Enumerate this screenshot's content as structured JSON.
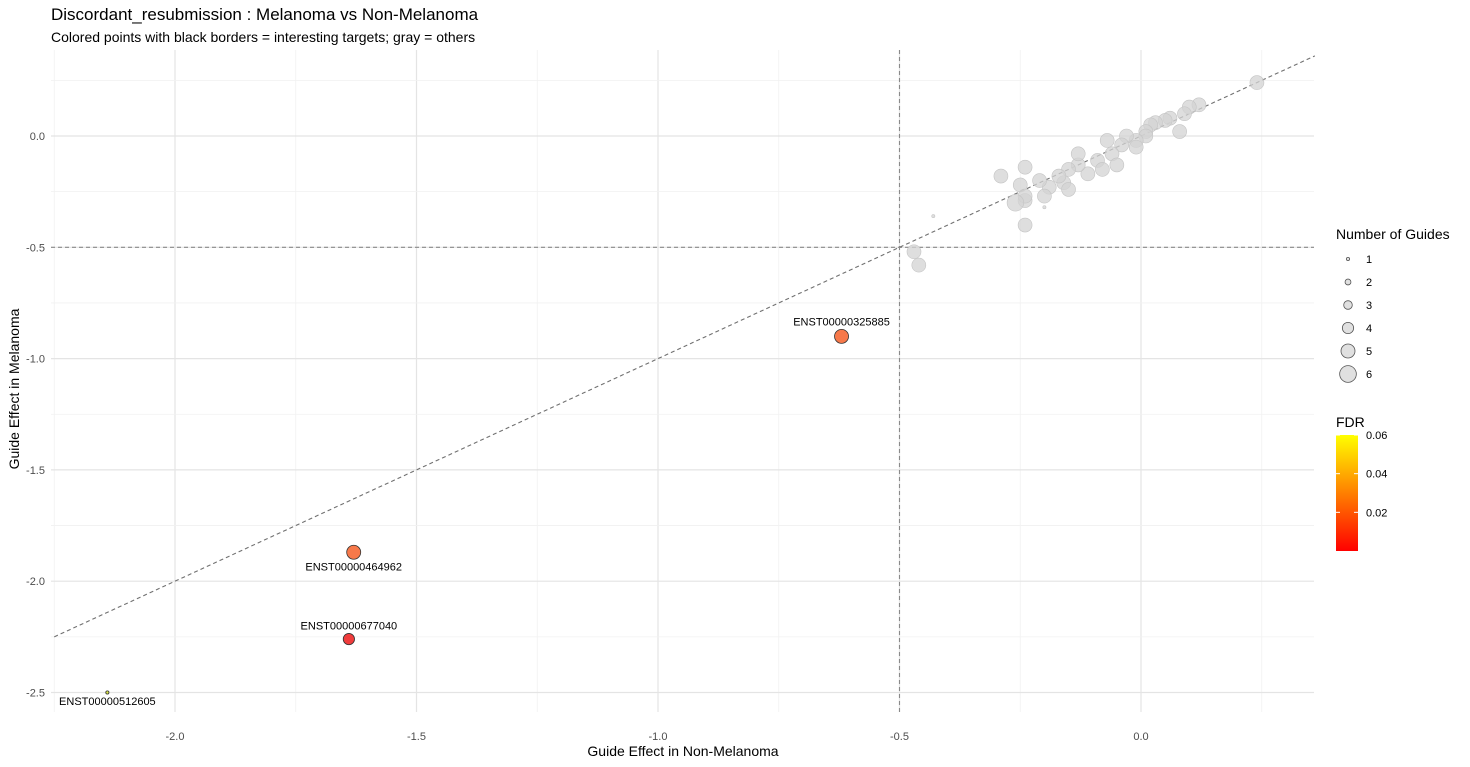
{
  "chart_data": {
    "type": "scatter",
    "title": "Discordant_resubmission : Melanoma vs Non-Melanoma",
    "subtitle": "Colored points with black borders = interesting targets; gray = others",
    "xlabel": "Guide Effect in Non-Melanoma",
    "ylabel": "Guide Effect in Melanoma",
    "xlim": [
      -2.25,
      0.36
    ],
    "ylim": [
      -2.55,
      0.37
    ],
    "x_ticks": [
      -2.0,
      -1.5,
      -1.0,
      -0.5,
      0.0
    ],
    "x_tick_labels": [
      "-2.0",
      "-1.5",
      "-1.0",
      "-0.5",
      "0.0"
    ],
    "y_ticks": [
      0.0,
      -0.5,
      -1.0,
      -1.5,
      -2.0,
      -2.5
    ],
    "y_tick_labels": [
      "0.0",
      "-0.5",
      "-1.0",
      "-1.5",
      "-2.0",
      "-2.5"
    ],
    "grid": true,
    "reference_lines": {
      "vline_x": -0.5,
      "hline_y": -0.5,
      "diagonal": "y = x"
    },
    "size_legend": {
      "title": "Number of Guides",
      "values": [
        1,
        2,
        3,
        4,
        5,
        6
      ],
      "labels": [
        "1",
        "2",
        "3",
        "4",
        "5",
        "6"
      ]
    },
    "color_legend": {
      "title": "FDR",
      "range": [
        0.0,
        0.06
      ],
      "colors": [
        "#FF0000",
        "#FFFF00"
      ],
      "ticks": [
        0.02,
        0.04,
        0.06
      ],
      "tick_labels": [
        "0.02",
        "0.04",
        "0.06"
      ]
    },
    "highlighted": [
      {
        "label": "ENST00000325885",
        "x": -0.62,
        "y": -0.9,
        "guides": 5,
        "fdr": 0.035,
        "color": "#F7794A",
        "label_pos": "above"
      },
      {
        "label": "ENST00000464962",
        "x": -1.63,
        "y": -1.87,
        "guides": 5,
        "fdr": 0.035,
        "color": "#F7794A",
        "label_pos": "below"
      },
      {
        "label": "ENST00000677040",
        "x": -1.64,
        "y": -2.26,
        "guides": 4,
        "fdr": 0.012,
        "color": "#F03C3C",
        "label_pos": "above"
      },
      {
        "label": "ENST00000512605",
        "x": -2.14,
        "y": -2.5,
        "guides": 1,
        "fdr": 0.055,
        "color": "#DDE94A",
        "label_pos": "below"
      }
    ],
    "others_color": "#D3D3D3",
    "others": [
      {
        "x": 0.24,
        "y": 0.24,
        "guides": 5
      },
      {
        "x": 0.12,
        "y": 0.14,
        "guides": 5
      },
      {
        "x": 0.1,
        "y": 0.13,
        "guides": 5
      },
      {
        "x": 0.09,
        "y": 0.1,
        "guides": 5
      },
      {
        "x": 0.08,
        "y": 0.02,
        "guides": 5
      },
      {
        "x": 0.06,
        "y": 0.08,
        "guides": 5
      },
      {
        "x": 0.05,
        "y": 0.07,
        "guides": 5
      },
      {
        "x": 0.03,
        "y": 0.06,
        "guides": 5
      },
      {
        "x": 0.02,
        "y": 0.05,
        "guides": 5
      },
      {
        "x": 0.01,
        "y": 0.02,
        "guides": 5
      },
      {
        "x": 0.01,
        "y": 0.0,
        "guides": 5
      },
      {
        "x": -0.01,
        "y": -0.02,
        "guides": 5
      },
      {
        "x": -0.03,
        "y": 0.0,
        "guides": 5
      },
      {
        "x": -0.01,
        "y": -0.05,
        "guides": 5
      },
      {
        "x": -0.04,
        "y": -0.04,
        "guides": 5
      },
      {
        "x": -0.06,
        "y": -0.08,
        "guides": 5
      },
      {
        "x": -0.07,
        "y": -0.02,
        "guides": 5
      },
      {
        "x": -0.09,
        "y": -0.11,
        "guides": 5
      },
      {
        "x": -0.05,
        "y": -0.13,
        "guides": 5
      },
      {
        "x": -0.08,
        "y": -0.15,
        "guides": 5
      },
      {
        "x": -0.11,
        "y": -0.17,
        "guides": 5
      },
      {
        "x": -0.13,
        "y": -0.13,
        "guides": 5
      },
      {
        "x": -0.13,
        "y": -0.08,
        "guides": 5
      },
      {
        "x": -0.15,
        "y": -0.15,
        "guides": 5
      },
      {
        "x": -0.16,
        "y": -0.21,
        "guides": 5
      },
      {
        "x": -0.17,
        "y": -0.18,
        "guides": 5
      },
      {
        "x": -0.15,
        "y": -0.24,
        "guides": 5
      },
      {
        "x": -0.19,
        "y": -0.23,
        "guides": 5
      },
      {
        "x": -0.2,
        "y": -0.27,
        "guides": 5
      },
      {
        "x": -0.21,
        "y": -0.2,
        "guides": 5
      },
      {
        "x": -0.2,
        "y": -0.32,
        "guides": 1
      },
      {
        "x": -0.24,
        "y": -0.14,
        "guides": 5
      },
      {
        "x": -0.25,
        "y": -0.22,
        "guides": 5
      },
      {
        "x": -0.24,
        "y": -0.29,
        "guides": 5
      },
      {
        "x": -0.24,
        "y": -0.27,
        "guides": 5
      },
      {
        "x": -0.26,
        "y": -0.3,
        "guides": 6
      },
      {
        "x": -0.24,
        "y": -0.4,
        "guides": 5
      },
      {
        "x": -0.29,
        "y": -0.18,
        "guides": 5
      },
      {
        "x": -0.43,
        "y": -0.36,
        "guides": 1
      },
      {
        "x": -0.47,
        "y": -0.52,
        "guides": 5
      },
      {
        "x": -0.46,
        "y": -0.58,
        "guides": 5
      }
    ]
  }
}
